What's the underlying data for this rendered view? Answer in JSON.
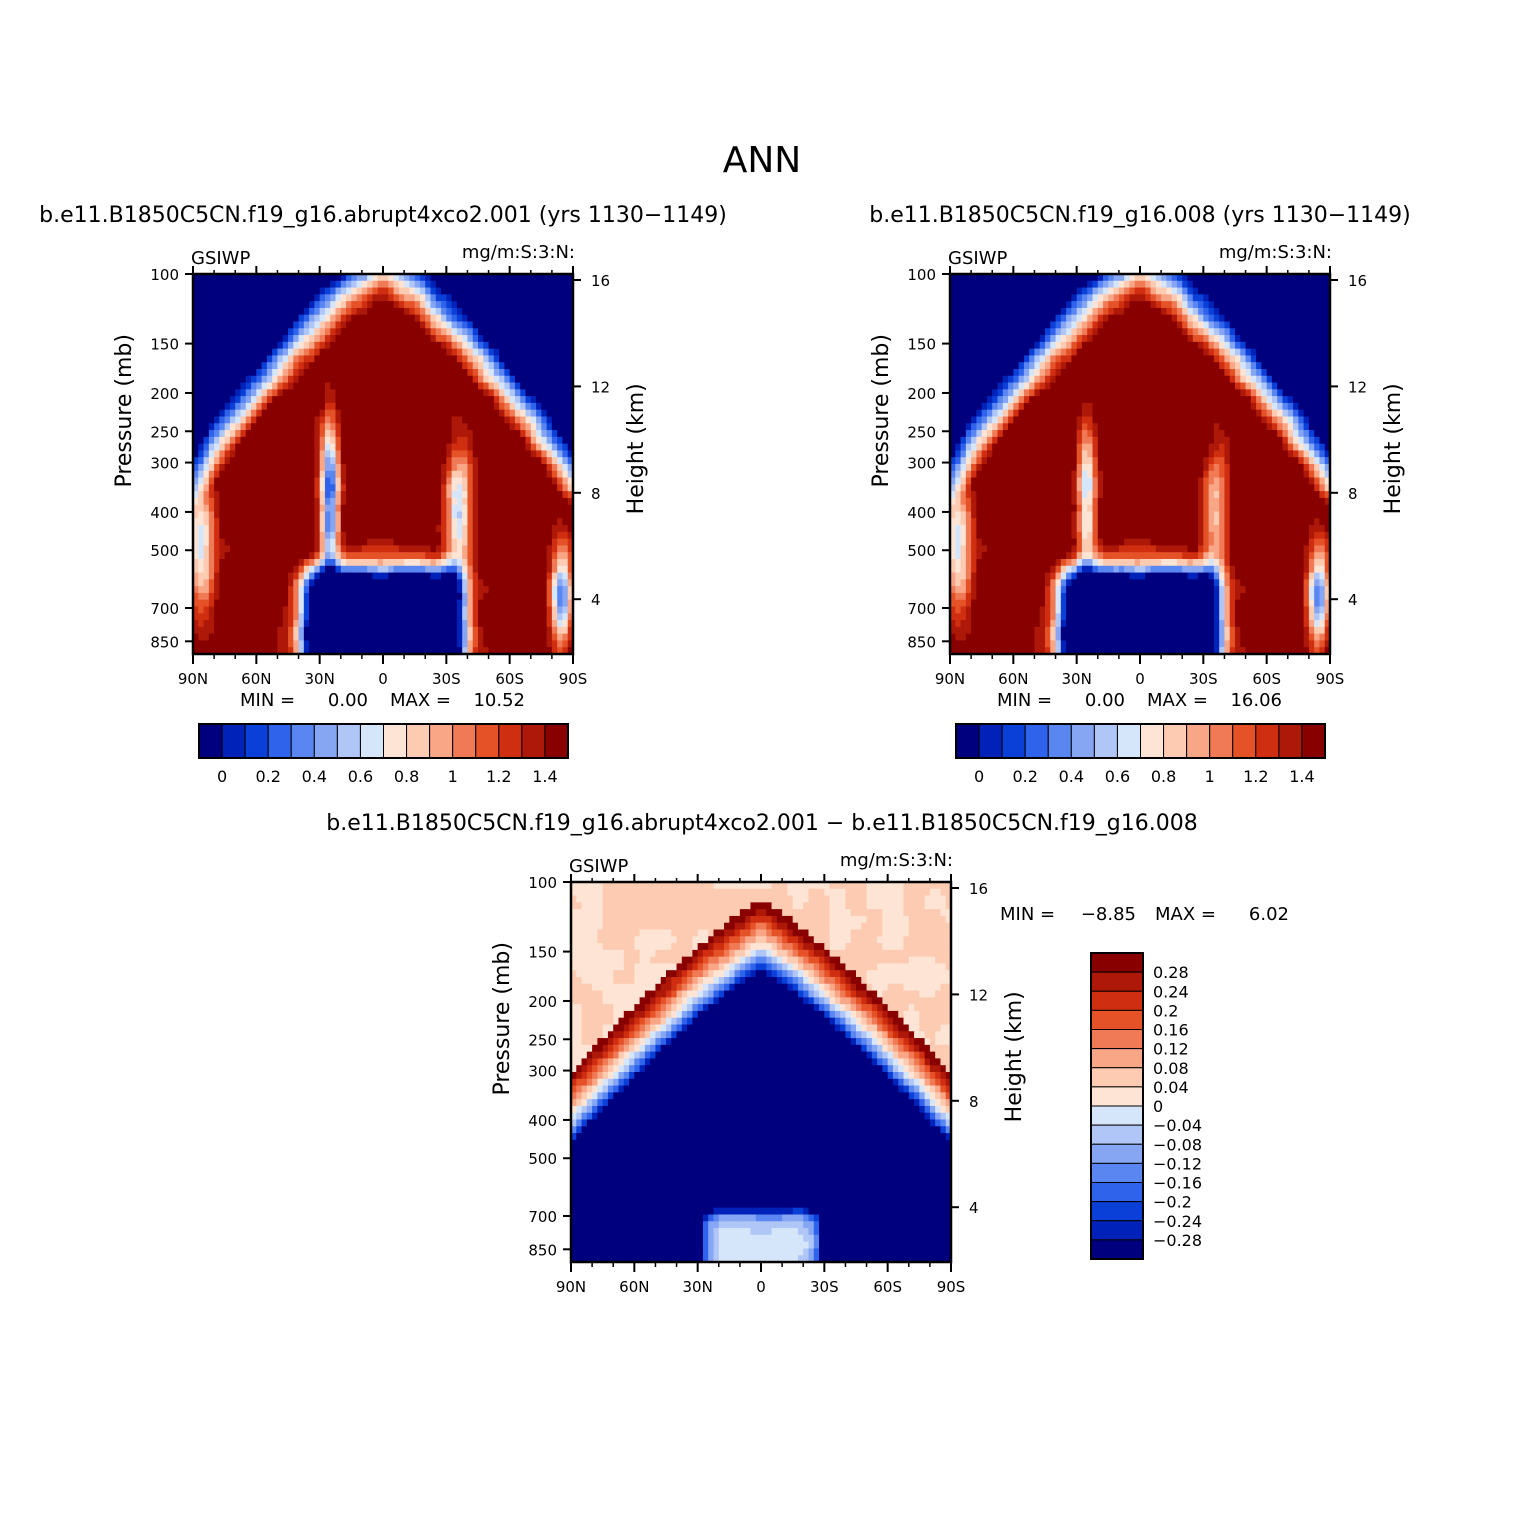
{
  "figure": {
    "title": "ANN"
  },
  "colors": {
    "scale": [
      "#00007f",
      "#0022b8",
      "#0a3fd8",
      "#2f63ec",
      "#5a86f2",
      "#86a6f4",
      "#b0c6f6",
      "#d6e6fa",
      "#fde4d4",
      "#fccbb2",
      "#f8a686",
      "#f07a55",
      "#e65228",
      "#d02e10",
      "#ae1808",
      "#880000"
    ],
    "diff_scale": [
      "#00007f",
      "#0022b8",
      "#0a3fd8",
      "#2f63ec",
      "#5a86f2",
      "#86a6f4",
      "#b0c6f6",
      "#d6e6fa",
      "#fde4d4",
      "#fccbb2",
      "#f8a686",
      "#f07a55",
      "#e65228",
      "#d02e10",
      "#ae1808",
      "#880000"
    ]
  },
  "chart_data": [
    {
      "type": "heatmap",
      "id": "case1",
      "title": "b.e11.B1850C5CN.f19_g16.abrupt4xco2.001 (yrs 1130−1149)",
      "variable": "GSIWP",
      "units": "mg/m:S:3:N:",
      "ylabel": "Pressure (mb)",
      "y2label": "Height (km)",
      "x_ticks": [
        "90N",
        "60N",
        "30N",
        "0",
        "30S",
        "60S",
        "90S"
      ],
      "y_ticks": [
        "100",
        "150",
        "200",
        "250",
        "300",
        "400",
        "500",
        "700",
        "850"
      ],
      "y_tick_values": [
        100,
        150,
        200,
        250,
        300,
        400,
        500,
        700,
        850
      ],
      "y2_ticks": [
        "16",
        "12",
        "8",
        "4"
      ],
      "y2_tick_values": [
        16,
        12,
        8,
        4
      ],
      "ylim": [
        100,
        1000
      ],
      "xlim": [
        90,
        -90
      ],
      "min_label": "MIN =",
      "min_value": "0.00",
      "max_label": "MAX =",
      "max_value": "10.52",
      "colorbar_labels": [
        "0",
        "0.2",
        "0.4",
        "0.6",
        "0.8",
        "1",
        "1.2",
        "1.4"
      ],
      "colorbar_levels": [
        0,
        0.1,
        0.2,
        0.3,
        0.4,
        0.5,
        0.6,
        0.7,
        0.8,
        0.9,
        1.0,
        1.1,
        1.2,
        1.3,
        1.4
      ]
    },
    {
      "type": "heatmap",
      "id": "case2",
      "title": "b.e11.B1850C5CN.f19_g16.008 (yrs 1130−1149)",
      "variable": "GSIWP",
      "units": "mg/m:S:3:N:",
      "ylabel": "Pressure (mb)",
      "y2label": "Height (km)",
      "x_ticks": [
        "90N",
        "60N",
        "30N",
        "0",
        "30S",
        "60S",
        "90S"
      ],
      "y_ticks": [
        "100",
        "150",
        "200",
        "250",
        "300",
        "400",
        "500",
        "700",
        "850"
      ],
      "y_tick_values": [
        100,
        150,
        200,
        250,
        300,
        400,
        500,
        700,
        850
      ],
      "y2_ticks": [
        "16",
        "12",
        "8",
        "4"
      ],
      "y2_tick_values": [
        16,
        12,
        8,
        4
      ],
      "ylim": [
        100,
        1000
      ],
      "xlim": [
        90,
        -90
      ],
      "min_label": "MIN =",
      "min_value": "0.00",
      "max_label": "MAX =",
      "max_value": "16.06",
      "colorbar_labels": [
        "0",
        "0.2",
        "0.4",
        "0.6",
        "0.8",
        "1",
        "1.2",
        "1.4"
      ],
      "colorbar_levels": [
        0,
        0.1,
        0.2,
        0.3,
        0.4,
        0.5,
        0.6,
        0.7,
        0.8,
        0.9,
        1.0,
        1.1,
        1.2,
        1.3,
        1.4
      ]
    },
    {
      "type": "heatmap",
      "id": "diff",
      "title": "b.e11.B1850C5CN.f19_g16.abrupt4xco2.001 − b.e11.B1850C5CN.f19_g16.008",
      "variable": "GSIWP",
      "units": "mg/m:S:3:N:",
      "ylabel": "Pressure (mb)",
      "y2label": "Height (km)",
      "x_ticks": [
        "90N",
        "60N",
        "30N",
        "0",
        "30S",
        "60S",
        "90S"
      ],
      "y_ticks": [
        "100",
        "150",
        "200",
        "250",
        "300",
        "400",
        "500",
        "700",
        "850"
      ],
      "y_tick_values": [
        100,
        150,
        200,
        250,
        300,
        400,
        500,
        700,
        850
      ],
      "y2_ticks": [
        "16",
        "12",
        "8",
        "4"
      ],
      "y2_tick_values": [
        16,
        12,
        8,
        4
      ],
      "ylim": [
        100,
        1000
      ],
      "xlim": [
        90,
        -90
      ],
      "min_label": "MIN =",
      "min_value": "−8.85",
      "max_label": "MAX =",
      "max_value": "6.02",
      "colorbar_labels": [
        "0.28",
        "0.24",
        "0.2",
        "0.16",
        "0.12",
        "0.08",
        "0.04",
        "0",
        "−0.04",
        "−0.08",
        "−0.12",
        "−0.16",
        "−0.2",
        "−0.24",
        "−0.28"
      ],
      "colorbar_levels": [
        0.28,
        0.24,
        0.2,
        0.16,
        0.12,
        0.08,
        0.04,
        0,
        -0.04,
        -0.08,
        -0.12,
        -0.16,
        -0.2,
        -0.24,
        -0.28
      ]
    }
  ]
}
